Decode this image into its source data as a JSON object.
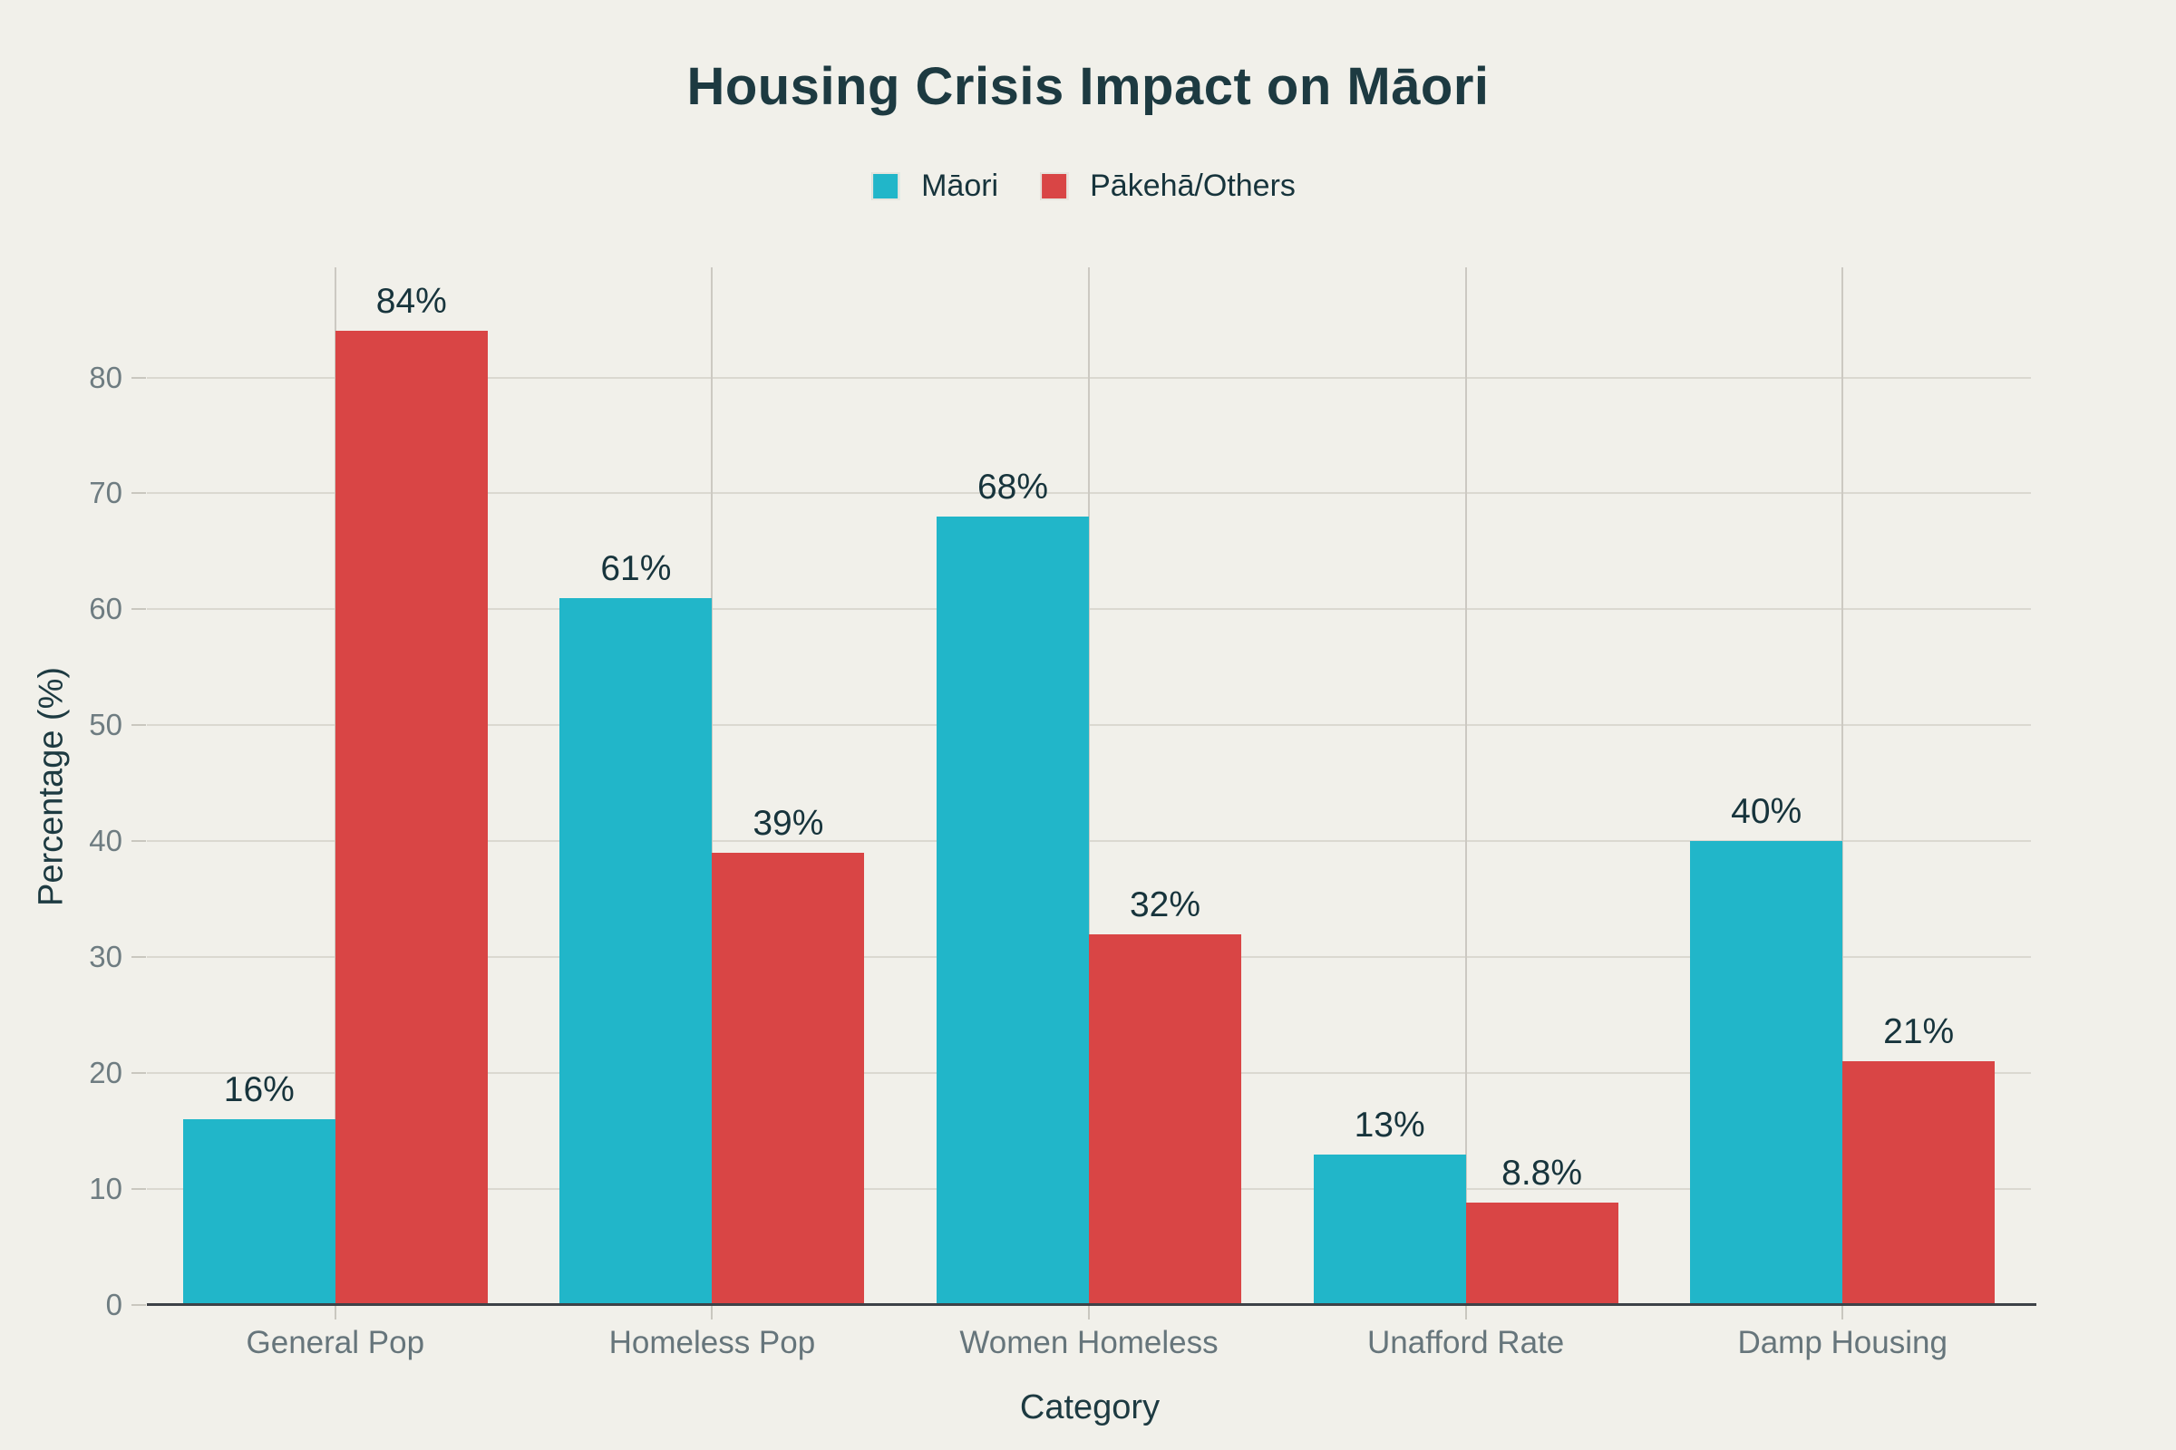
{
  "title": "Housing Crisis Impact on Māori",
  "legend": {
    "items": [
      {
        "label": "Māori",
        "color": "#21b6c9"
      },
      {
        "label": "Pākehā/Others",
        "color": "#d94545"
      }
    ]
  },
  "chart_data": {
    "type": "bar",
    "title": "Housing Crisis Impact on Māori",
    "categories": [
      "General Pop",
      "Homeless Pop",
      "Women Homeless",
      "Unafford Rate",
      "Damp Housing"
    ],
    "series": [
      {
        "name": "Māori",
        "color": "#21b6c9",
        "values": [
          16,
          61,
          68,
          13,
          40
        ],
        "labels": [
          "16%",
          "61%",
          "68%",
          "13%",
          "40%"
        ]
      },
      {
        "name": "Pākehā/Others",
        "color": "#d94545",
        "values": [
          84,
          39,
          32,
          8.8,
          21
        ],
        "labels": [
          "84%",
          "39%",
          "32%",
          "8.8%",
          "21%"
        ]
      }
    ],
    "xlabel": "Category",
    "ylabel": "Percentage (%)",
    "ylim": [
      0,
      89.5
    ],
    "yticks": [
      0,
      10,
      20,
      30,
      40,
      50,
      60,
      70,
      80
    ],
    "grid": true,
    "legend_position": "top-center"
  },
  "colors": {
    "background": "#f1f0ea",
    "title_text": "#1d3a41",
    "axis_title_text": "#1d3a41",
    "y_tick_text": "#6e7c81",
    "x_tick_text": "#66757b",
    "value_label_text": "#17343c",
    "grid_horizontal": "#dad8d0",
    "grid_vertical": "#ccc9c2",
    "tick_dash": "#c9c7bf",
    "axis_line": "#3d4247"
  }
}
